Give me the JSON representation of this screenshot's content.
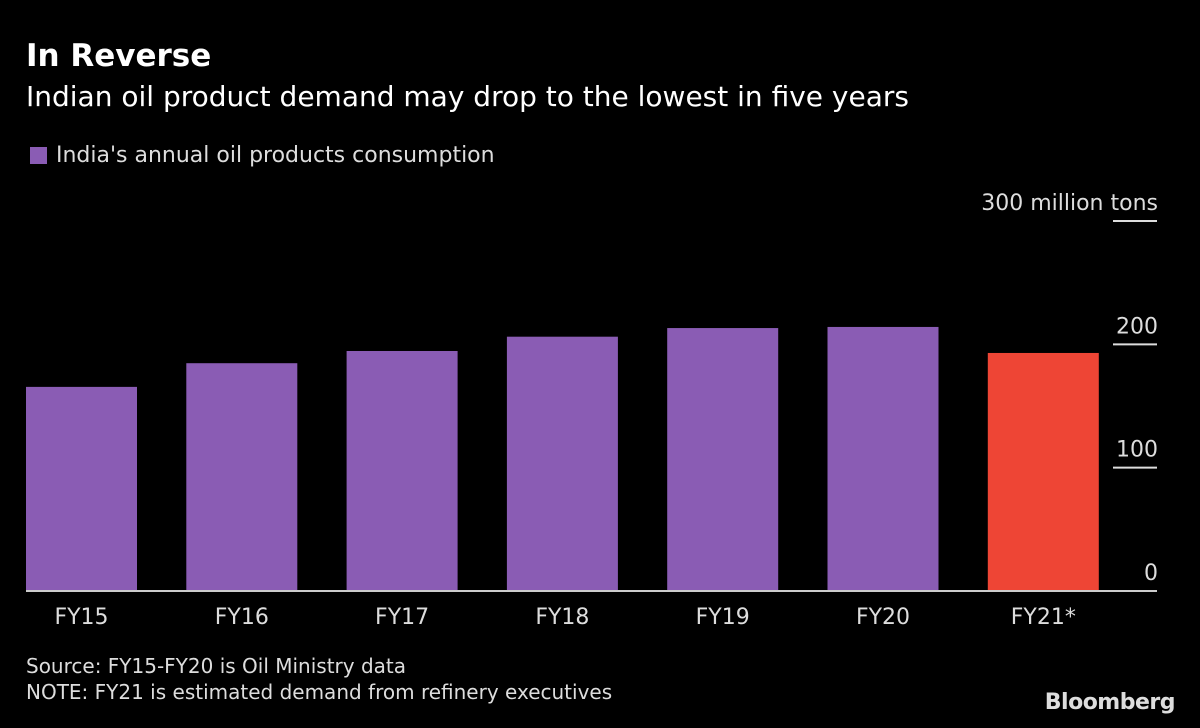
{
  "chart_data": {
    "type": "bar",
    "title": "In Reverse",
    "subtitle": "Indian oil product demand may drop to the lowest in five years",
    "categories": [
      "FY15",
      "FY16",
      "FY17",
      "FY18",
      "FY19",
      "FY20",
      "FY21*"
    ],
    "series": [
      {
        "name": "India's annual oil products consumption",
        "values": [
          165.5,
          184.7,
          194.6,
          206.2,
          213.2,
          214.1,
          193
        ]
      }
    ],
    "bar_colors": [
      "#8a5cb4",
      "#8a5cb4",
      "#8a5cb4",
      "#8a5cb4",
      "#8a5cb4",
      "#8a5cb4",
      "#ee4535"
    ],
    "ylim": [
      0,
      300
    ],
    "yticks": [
      0,
      100,
      200,
      300
    ],
    "ytick_labels": [
      "0",
      "100",
      "200",
      "300 million tons"
    ],
    "yaxis_side": "right",
    "grid": false,
    "legend_placement": "top-left",
    "source": "Source: FY15-FY20 is Oil Ministry data",
    "note": "NOTE: FY21 is estimated demand from refinery executives"
  },
  "branding": {
    "logo": "Bloomberg"
  },
  "colors": {
    "background": "#000000",
    "series": "#8a5cb4",
    "highlight": "#ee4535"
  }
}
